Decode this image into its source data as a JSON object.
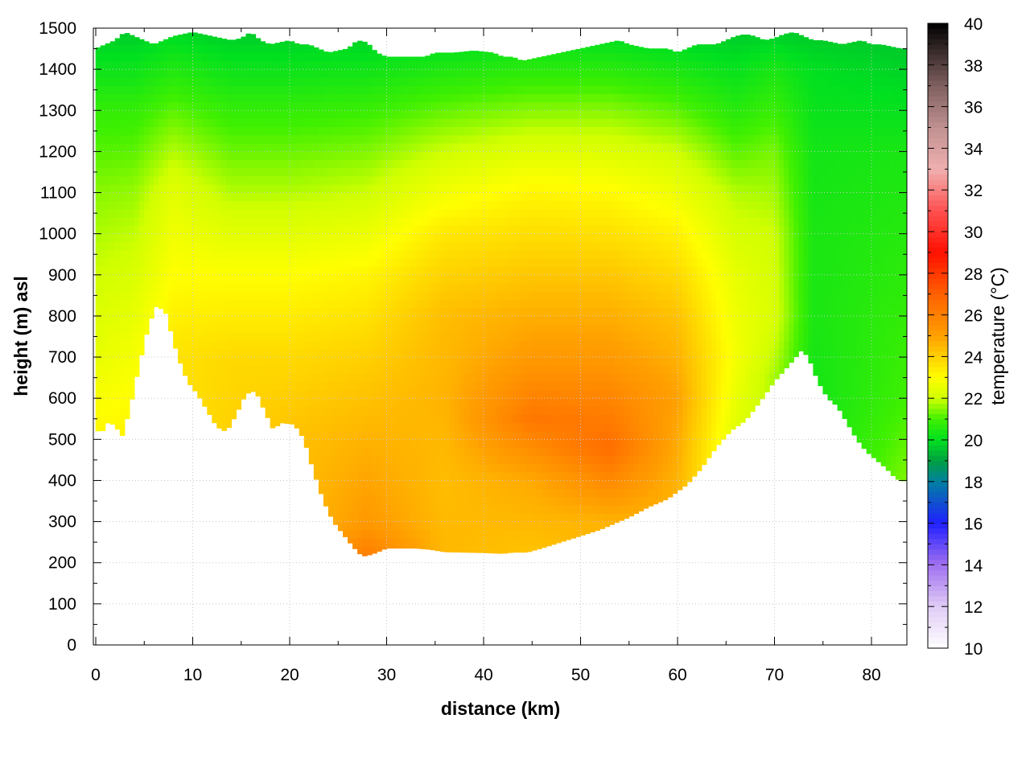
{
  "chart_data": {
    "type": "heatmap",
    "title": "",
    "xlabel": "distance (km)",
    "ylabel": "height (m) asl",
    "colorbar_label": "temperature (°C)",
    "xlim": [
      0,
      84
    ],
    "ylim": [
      0,
      1500
    ],
    "clim": [
      10,
      40
    ],
    "grid": true,
    "x_ticks": [
      "0",
      "10",
      "20",
      "30",
      "40",
      "50",
      "60",
      "70",
      "80"
    ],
    "y_ticks": [
      "0",
      "100",
      "200",
      "300",
      "400",
      "500",
      "600",
      "700",
      "800",
      "900",
      "1000",
      "1100",
      "1200",
      "1300",
      "1400",
      "1500"
    ],
    "colorbar_ticks": [
      "10",
      "12",
      "14",
      "16",
      "18",
      "20",
      "22",
      "24",
      "26",
      "28",
      "30",
      "32",
      "34",
      "36",
      "38",
      "40"
    ],
    "colormap": [
      [
        10,
        "#ffffff"
      ],
      [
        12,
        "#e0ccf5"
      ],
      [
        14,
        "#a070f0"
      ],
      [
        16,
        "#2020ff"
      ],
      [
        18,
        "#0080a0"
      ],
      [
        19,
        "#00a040"
      ],
      [
        20,
        "#00e020"
      ],
      [
        21,
        "#40f000"
      ],
      [
        22,
        "#d0ff00"
      ],
      [
        23,
        "#ffff00"
      ],
      [
        24,
        "#ffd000"
      ],
      [
        25,
        "#ffa000"
      ],
      [
        27,
        "#ff6000"
      ],
      [
        29,
        "#ff1000"
      ],
      [
        31,
        "#ff5050"
      ],
      [
        33,
        "#f0b0b0"
      ],
      [
        35,
        "#c09090"
      ],
      [
        37,
        "#806060"
      ],
      [
        40,
        "#000000"
      ]
    ],
    "terrain": {
      "x": [
        0,
        0.5,
        1.2,
        2,
        2.7,
        3.5,
        4.5,
        5.5,
        6.3,
        7.2,
        8.5,
        9.5,
        10.5,
        11.5,
        12.5,
        13.5,
        14.5,
        15.5,
        16.5,
        17.4,
        18.3,
        19.2,
        20.5,
        21.5,
        22.5,
        23.5,
        24.5,
        25.5,
        26.5,
        27.5,
        28.5,
        30,
        31.5,
        33,
        34.5,
        36,
        38,
        40,
        42,
        43,
        44.5,
        46,
        48,
        50,
        52,
        53.5,
        55,
        57,
        59,
        61,
        62.5,
        64,
        65.5,
        67,
        68.5,
        70,
        71.5,
        72.8,
        73.5,
        74.5,
        75.5,
        76.5,
        77.5,
        78.5,
        79.5,
        80.5,
        81.5,
        82.3,
        83,
        83.7,
        84
      ],
      "height": [
        530,
        510,
        540,
        535,
        505,
        570,
        680,
        780,
        825,
        810,
        700,
        640,
        610,
        570,
        530,
        518,
        560,
        610,
        618,
        570,
        525,
        540,
        536,
        500,
        420,
        350,
        300,
        270,
        240,
        215,
        220,
        235,
        235,
        235,
        232,
        226,
        225,
        224,
        222,
        225,
        225,
        235,
        250,
        265,
        280,
        295,
        310,
        335,
        355,
        390,
        430,
        480,
        520,
        545,
        590,
        640,
        680,
        716,
        700,
        640,
        600,
        580,
        540,
        500,
        470,
        450,
        430,
        410,
        398,
        400,
        400
      ]
    },
    "top_boundary": {
      "x": [
        0,
        2,
        3,
        4,
        5,
        6,
        7,
        8,
        10,
        12,
        14,
        15,
        16,
        17,
        18,
        19,
        20,
        21,
        22,
        24,
        26,
        27,
        28,
        29,
        30,
        32,
        34,
        35,
        37,
        39,
        41,
        42,
        43,
        44,
        46,
        48,
        50,
        52,
        54,
        55,
        57,
        59,
        60,
        61,
        62,
        63,
        64,
        65,
        66,
        67,
        68,
        69,
        70,
        71,
        72,
        73,
        74,
        75,
        76,
        77,
        78,
        79,
        80,
        81,
        82,
        83,
        84
      ],
      "height": [
        1450,
        1470,
        1490,
        1480,
        1470,
        1460,
        1470,
        1480,
        1490,
        1480,
        1470,
        1475,
        1490,
        1470,
        1460,
        1465,
        1470,
        1460,
        1460,
        1440,
        1450,
        1470,
        1465,
        1440,
        1430,
        1430,
        1430,
        1440,
        1440,
        1445,
        1440,
        1430,
        1430,
        1420,
        1430,
        1440,
        1450,
        1460,
        1470,
        1460,
        1450,
        1450,
        1440,
        1450,
        1460,
        1460,
        1460,
        1470,
        1480,
        1485,
        1480,
        1470,
        1475,
        1485,
        1490,
        1480,
        1470,
        1470,
        1465,
        1460,
        1465,
        1470,
        1460,
        1460,
        1455,
        1450,
        1450
      ]
    },
    "temperature_profiles": [
      {
        "x": 0,
        "levels": [
          [
            500,
            23.2
          ],
          [
            700,
            22.5
          ],
          [
            900,
            22
          ],
          [
            1100,
            21.5
          ],
          [
            1300,
            20.8
          ],
          [
            1500,
            19.6
          ]
        ]
      },
      {
        "x": 4,
        "levels": [
          [
            500,
            23.3
          ],
          [
            700,
            22.8
          ],
          [
            900,
            22.2
          ],
          [
            1100,
            21.6
          ],
          [
            1300,
            20.8
          ],
          [
            1500,
            19.6
          ]
        ]
      },
      {
        "x": 8,
        "levels": [
          [
            700,
            23.6
          ],
          [
            900,
            23
          ],
          [
            1100,
            22.4
          ],
          [
            1300,
            21.2
          ],
          [
            1500,
            19.8
          ]
        ]
      },
      {
        "x": 14,
        "levels": [
          [
            500,
            24
          ],
          [
            700,
            23.8
          ],
          [
            900,
            23
          ],
          [
            1100,
            21.8
          ],
          [
            1300,
            20.8
          ],
          [
            1500,
            19.6
          ]
        ]
      },
      {
        "x": 20,
        "levels": [
          [
            500,
            24.3
          ],
          [
            700,
            23.8
          ],
          [
            900,
            23
          ],
          [
            1100,
            21.8
          ],
          [
            1300,
            20.8
          ],
          [
            1500,
            19.6
          ]
        ]
      },
      {
        "x": 28,
        "levels": [
          [
            200,
            26.3
          ],
          [
            300,
            25.2
          ],
          [
            500,
            24.6
          ],
          [
            700,
            24
          ],
          [
            900,
            23.2
          ],
          [
            1100,
            22
          ],
          [
            1300,
            20.9
          ],
          [
            1500,
            19.6
          ]
        ]
      },
      {
        "x": 36,
        "levels": [
          [
            200,
            24.5
          ],
          [
            400,
            24.4
          ],
          [
            600,
            24.6
          ],
          [
            800,
            24.4
          ],
          [
            1000,
            23.5
          ],
          [
            1200,
            22
          ],
          [
            1400,
            20.5
          ],
          [
            1500,
            19.6
          ]
        ]
      },
      {
        "x": 45,
        "levels": [
          [
            200,
            24.2
          ],
          [
            400,
            24.8
          ],
          [
            550,
            26.3
          ],
          [
            700,
            25.2
          ],
          [
            900,
            24.2
          ],
          [
            1100,
            23.2
          ],
          [
            1300,
            21.5
          ],
          [
            1500,
            19.8
          ]
        ]
      },
      {
        "x": 53,
        "levels": [
          [
            300,
            24.6
          ],
          [
            480,
            26.6
          ],
          [
            700,
            25.2
          ],
          [
            900,
            24.2
          ],
          [
            1100,
            23.1
          ],
          [
            1300,
            21.5
          ],
          [
            1500,
            19.8
          ]
        ]
      },
      {
        "x": 60,
        "levels": [
          [
            400,
            24.6
          ],
          [
            600,
            25
          ],
          [
            800,
            24.3
          ],
          [
            1000,
            23.3
          ],
          [
            1200,
            22
          ],
          [
            1400,
            20.4
          ],
          [
            1500,
            19.6
          ]
        ]
      },
      {
        "x": 66,
        "levels": [
          [
            500,
            22.3
          ],
          [
            700,
            22.8
          ],
          [
            900,
            22.5
          ],
          [
            1100,
            21.8
          ],
          [
            1300,
            20.6
          ],
          [
            1500,
            19.6
          ]
        ]
      },
      {
        "x": 70,
        "levels": [
          [
            650,
            21.7
          ],
          [
            800,
            22.2
          ],
          [
            1000,
            22
          ],
          [
            1200,
            21.4
          ],
          [
            1400,
            20.4
          ],
          [
            1500,
            19.6
          ]
        ]
      },
      {
        "x": 74,
        "levels": [
          [
            600,
            20.3
          ],
          [
            800,
            20.4
          ],
          [
            1000,
            20.4
          ],
          [
            1200,
            20.3
          ],
          [
            1400,
            20
          ],
          [
            1500,
            19.6
          ]
        ]
      },
      {
        "x": 84,
        "levels": [
          [
            400,
            21.5
          ],
          [
            600,
            21
          ],
          [
            800,
            20.8
          ],
          [
            1000,
            20.6
          ],
          [
            1200,
            20.4
          ],
          [
            1400,
            19.8
          ],
          [
            1500,
            19.5
          ]
        ]
      }
    ]
  }
}
